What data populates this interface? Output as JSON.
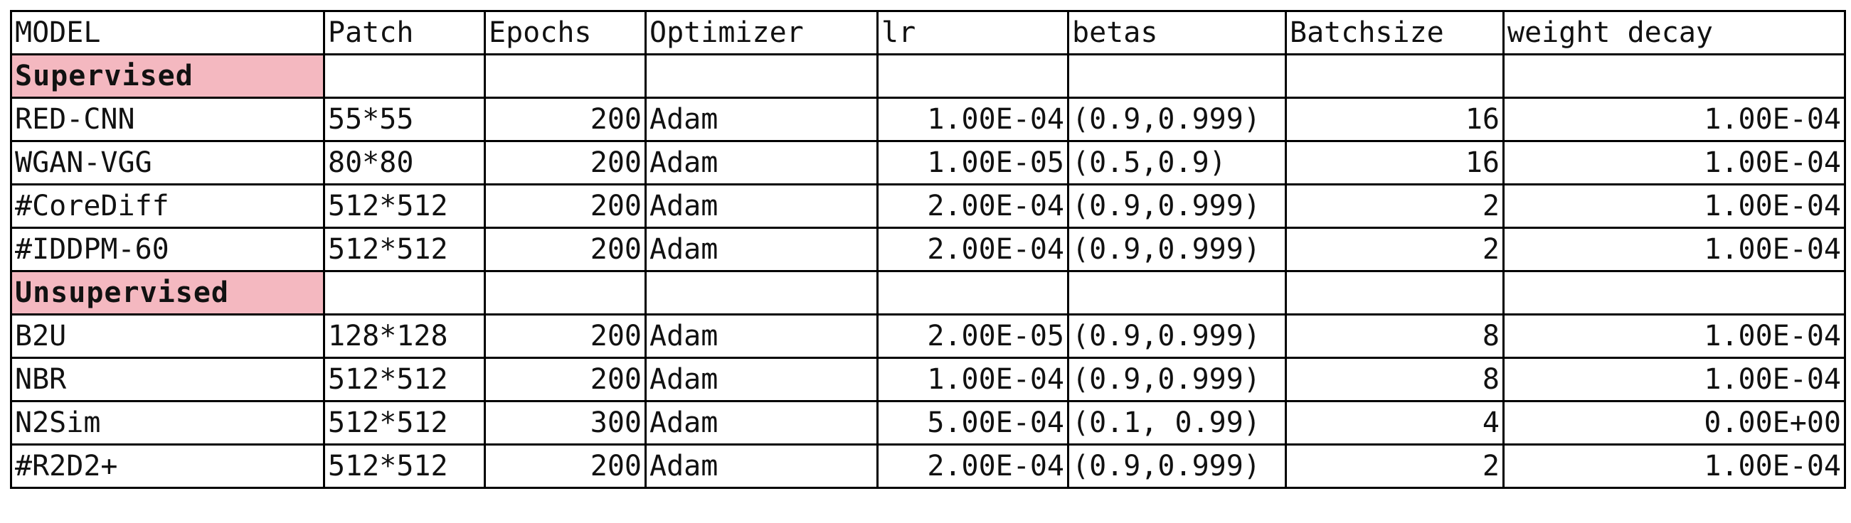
{
  "columns": [
    "MODEL",
    "Patch",
    "Epochs",
    "Optimizer",
    "lr",
    "betas",
    "Batchsize",
    "weight decay"
  ],
  "colors": {
    "section_fill": "#f4b8c0",
    "border": "#000000",
    "text": "#111111"
  },
  "sections": [
    {
      "title": "Supervised",
      "rows": [
        [
          "RED-CNN",
          "55*55",
          "200",
          "Adam",
          "1.00E-04",
          "(0.9,0.999)",
          "16",
          "1.00E-04"
        ],
        [
          "WGAN-VGG",
          "80*80",
          "200",
          "Adam",
          "1.00E-05",
          "(0.5,0.9)",
          "16",
          "1.00E-04"
        ],
        [
          "#CoreDiff",
          "512*512",
          "200",
          "Adam",
          "2.00E-04",
          "(0.9,0.999)",
          "2",
          "1.00E-04"
        ],
        [
          "#IDDPM-60",
          "512*512",
          "200",
          "Adam",
          "2.00E-04",
          "(0.9,0.999)",
          "2",
          "1.00E-04"
        ]
      ]
    },
    {
      "title": "Unsupervised",
      "rows": [
        [
          "B2U",
          "128*128",
          "200",
          "Adam",
          "2.00E-05",
          "(0.9,0.999)",
          "8",
          "1.00E-04"
        ],
        [
          "NBR",
          "512*512",
          "200",
          "Adam",
          "1.00E-04",
          "(0.9,0.999)",
          "8",
          "1.00E-04"
        ],
        [
          "N2Sim",
          "512*512",
          "300",
          "Adam",
          "5.00E-04",
          "(0.1, 0.99)",
          "4",
          "0.00E+00"
        ],
        [
          "#R2D2+",
          "512*512",
          "200",
          "Adam",
          "2.00E-04",
          "(0.9,0.999)",
          "2",
          "1.00E-04"
        ]
      ]
    }
  ]
}
